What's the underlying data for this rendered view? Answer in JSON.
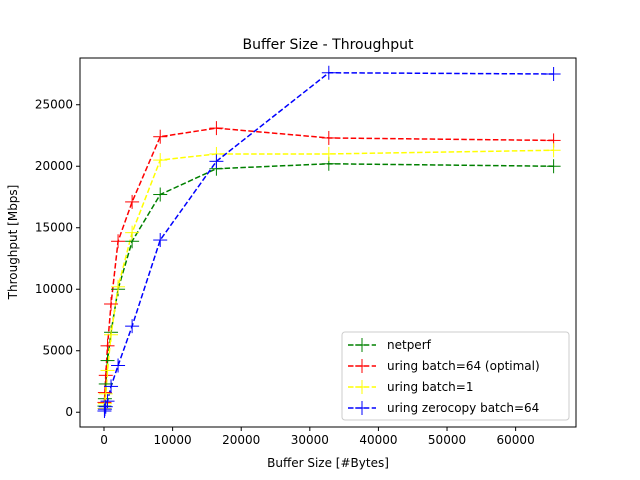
{
  "chart_data": {
    "type": "line",
    "title": "Buffer Size - Throughput",
    "xlabel": "Buffer Size [#Bytes]",
    "ylabel": "Throughput [Mbps]",
    "xlim": [
      -3500,
      68800
    ],
    "ylim": [
      -1200,
      28800
    ],
    "x_ticks": [
      0,
      10000,
      20000,
      30000,
      40000,
      50000,
      60000
    ],
    "y_ticks": [
      0,
      5000,
      10000,
      15000,
      20000,
      25000
    ],
    "grid": false,
    "legend_position": "lower-right",
    "series": [
      {
        "name": "netperf",
        "color": "#008000",
        "x": [
          64,
          128,
          256,
          512,
          1024,
          2048,
          4096,
          8192,
          16384,
          32768,
          65536
        ],
        "y": [
          500,
          1100,
          2300,
          4200,
          6500,
          10000,
          13900,
          17700,
          19800,
          20200,
          20000
        ]
      },
      {
        "name": "uring batch=64 (optimal)",
        "color": "#ff0000",
        "x": [
          64,
          128,
          256,
          512,
          1024,
          2048,
          4096,
          8192,
          16384,
          32768,
          65536
        ],
        "y": [
          800,
          1600,
          3000,
          5400,
          8800,
          13900,
          17100,
          22400,
          23100,
          22300,
          22100
        ]
      },
      {
        "name": "uring batch=1",
        "color": "#ffff00",
        "x": [
          64,
          128,
          256,
          512,
          1024,
          2048,
          4096,
          8192,
          16384,
          32768,
          65536
        ],
        "y": [
          300,
          700,
          1500,
          3400,
          6300,
          10200,
          14600,
          20500,
          21000,
          21000,
          21300
        ]
      },
      {
        "name": "uring zerocopy batch=64",
        "color": "#0000ff",
        "x": [
          64,
          128,
          256,
          512,
          1024,
          2048,
          4096,
          8192,
          16384,
          32768,
          65536
        ],
        "y": [
          100,
          250,
          450,
          900,
          2100,
          3800,
          7000,
          14000,
          20400,
          27600,
          27500
        ]
      }
    ]
  }
}
